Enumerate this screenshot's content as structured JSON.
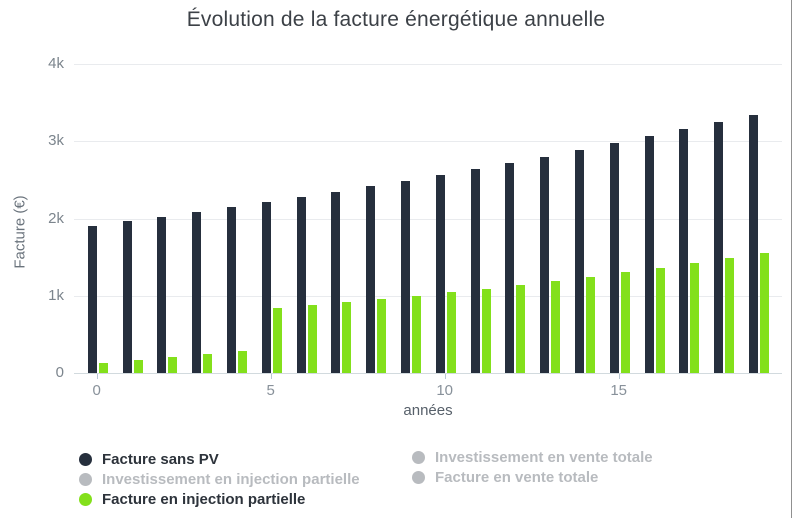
{
  "chart_data": {
    "type": "bar",
    "title": "Évolution de la facture énergétique annuelle",
    "xlabel": "années",
    "ylabel": "Facture (€)",
    "categories": [
      0,
      1,
      2,
      3,
      4,
      5,
      6,
      7,
      8,
      9,
      10,
      11,
      12,
      13,
      14,
      15,
      16,
      17,
      18,
      19
    ],
    "x_ticks": [
      0,
      5,
      10,
      15
    ],
    "y_ticks": [
      {
        "label": "0",
        "value": 0
      },
      {
        "label": "1k",
        "value": 1000
      },
      {
        "label": "2k",
        "value": 2000
      },
      {
        "label": "3k",
        "value": 3000
      },
      {
        "label": "4k",
        "value": 4000
      }
    ],
    "ylim": [
      0,
      4250
    ],
    "grid": true,
    "legend_position": "bottom",
    "series": [
      {
        "key": "facture-sans-pv",
        "name": "Facture sans PV",
        "color": "#262f3d",
        "visible": true,
        "values": [
          1910,
          1967,
          2026,
          2087,
          2150,
          2214,
          2281,
          2349,
          2419,
          2492,
          2567,
          2644,
          2723,
          2805,
          2889,
          2976,
          3065,
          3157,
          3251,
          3349
        ]
      },
      {
        "key": "investissement-en-injection-partielle",
        "name": "Investissement en injection partielle",
        "color": "#b8bbbf",
        "visible": false,
        "values": []
      },
      {
        "key": "facture-en-injection-partielle",
        "name": "Facture en injection partielle",
        "color": "#83e01b",
        "visible": true,
        "values": [
          130,
          170,
          210,
          250,
          290,
          840,
          878,
          917,
          958,
          1001,
          1046,
          1093,
          1142,
          1193,
          1247,
          1303,
          1361,
          1422,
          1486,
          1553
        ]
      },
      {
        "key": "investissement-en-vente-totale",
        "name": "Investissement en vente totale",
        "color": "#b8bbbf",
        "visible": false,
        "values": []
      },
      {
        "key": "facture-en-vente-totale",
        "name": "Facture en vente totale",
        "color": "#b8bbbf",
        "visible": false,
        "values": []
      }
    ]
  },
  "legend": {
    "columns": [
      {
        "items": [
          {
            "label": "Facture sans PV",
            "color": "#262f3d",
            "active": true
          },
          {
            "label": "Investissement en injection partielle",
            "color": "#b8bbbf",
            "active": false
          },
          {
            "label": "Facture en injection partielle",
            "color": "#83e01b",
            "active": true
          }
        ]
      },
      {
        "items": [
          {
            "label": "Investissement en vente totale",
            "color": "#b8bbbf",
            "active": false
          },
          {
            "label": "Facture en vente totale",
            "color": "#b8bbbf",
            "active": false
          }
        ]
      }
    ]
  }
}
